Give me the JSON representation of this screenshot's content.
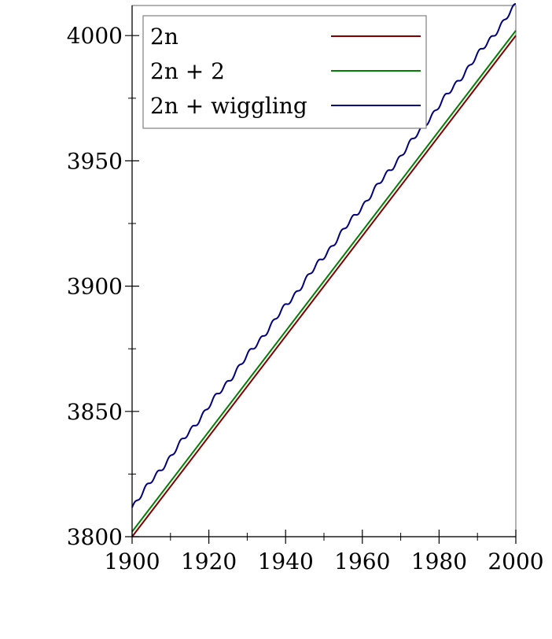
{
  "chart_data": {
    "type": "line",
    "title": "",
    "xlabel": "",
    "ylabel": "",
    "xlim": [
      1900,
      2000
    ],
    "ylim": [
      3800,
      4012
    ],
    "x_ticks": [
      1900,
      1920,
      1940,
      1960,
      1980,
      2000
    ],
    "x_minor_ticks": [
      1910,
      1930,
      1950,
      1970,
      1990
    ],
    "y_ticks": [
      3800,
      3850,
      3900,
      3950,
      4000
    ],
    "y_minor_ticks": [
      3825,
      3875,
      3925,
      3975
    ],
    "grid": false,
    "legend_position": "top-left",
    "series": [
      {
        "name": "2n",
        "color": "#800000",
        "formula": "2n",
        "points": [
          [
            1900,
            3800
          ],
          [
            2000,
            4000
          ]
        ]
      },
      {
        "name": "2n + 2",
        "color": "#008000",
        "formula": "2n+2",
        "points": [
          [
            1900,
            3802
          ],
          [
            2000,
            4002
          ]
        ]
      },
      {
        "name": "2n + wiggling",
        "color": "#000080",
        "formula": "2n+wiggle",
        "points": [
          [
            1900,
            3812
          ],
          [
            1910,
            3830
          ],
          [
            1920,
            3851
          ],
          [
            1930,
            3871
          ],
          [
            1940,
            3890
          ],
          [
            1950,
            3911
          ],
          [
            1960,
            3931
          ],
          [
            1970,
            3951
          ],
          [
            1980,
            3971
          ],
          [
            1990,
            3991
          ],
          [
            2000,
            4012
          ]
        ]
      }
    ]
  }
}
